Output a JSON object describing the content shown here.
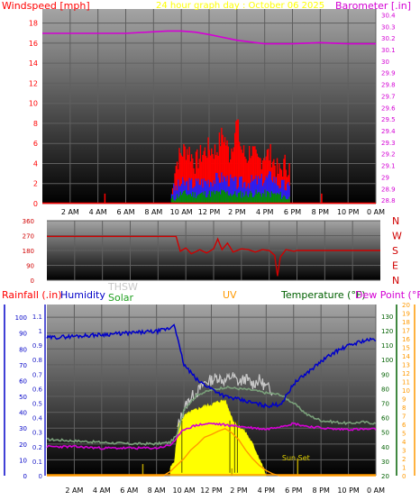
{
  "colors": {
    "background": "#ffffff",
    "plot_top": "#a0a0a0",
    "plot_bottom": "#000000",
    "grid": "#5f5f5f",
    "wind_speed": "#ff0000",
    "wind_avg": "#2020ff",
    "wind_low": "#009000",
    "barometer": "#d400d4",
    "direction": "#d00000",
    "humidity": "#0000c8",
    "solar": "#ffff00",
    "uv": "#ff9900",
    "thsw": "#c8c8c8",
    "temperature": "#207020",
    "dew_point": "#ff8c00",
    "rain": "#2020c8"
  },
  "chart_data": [
    {
      "type": "bar",
      "title": "24 hour graph day : October 06 2025",
      "left_axis_label": "Windspeed [mph]",
      "right_axis_label": "Barometer [.in]",
      "x_ticks": [
        "2 AM",
        "4 AM",
        "6 AM",
        "8 AM",
        "10 AM",
        "12 PM",
        "2 PM",
        "4 PM",
        "6 PM",
        "8 PM",
        "10 PM",
        "0 AM"
      ],
      "x_range_hours": [
        0,
        24
      ],
      "y_left_ticks": [
        "0",
        "2",
        "4",
        "6",
        "8",
        "10",
        "12",
        "14",
        "16",
        "18"
      ],
      "y_left_range": [
        0,
        19.4
      ],
      "y_right_ticks": [
        "28.8",
        "28.9",
        "29",
        "29.1",
        "29.2",
        "29.3",
        "29.4",
        "29.5",
        "29.6",
        "29.7",
        "29.8",
        "29.9",
        "30",
        "30.1",
        "30.2",
        "30.3",
        "30.4"
      ],
      "y_right_range": [
        28.77,
        30.45
      ],
      "series": [
        {
          "name": "Windspeed gust",
          "hours": [
            0,
            4.5,
            9.3,
            9.5,
            9.8,
            10.1,
            10.5,
            11,
            11.5,
            12,
            12.5,
            13,
            13.5,
            14,
            14.3,
            14.7,
            15,
            15.5,
            16,
            16.5,
            17,
            17.5,
            17.8,
            20.1
          ],
          "values": [
            0,
            1,
            0,
            3.5,
            4.5,
            5.2,
            5.5,
            4,
            5,
            5.5,
            5.2,
            7,
            4.8,
            8.2,
            5.5,
            4.5,
            5.5,
            4,
            5,
            4.8,
            3,
            4,
            3.5,
            1
          ]
        },
        {
          "name": "Windspeed average",
          "hours": [
            9.3,
            10,
            11,
            12,
            13,
            14,
            15,
            16,
            16.5,
            17,
            17.8
          ],
          "values": [
            1.2,
            2,
            2,
            2.3,
            2.6,
            2,
            2.2,
            2.4,
            2.8,
            2,
            1.5
          ]
        },
        {
          "name": "Windspeed low",
          "hours": [
            9.3,
            10,
            11,
            12,
            13,
            14,
            15,
            16,
            17,
            17.8
          ],
          "values": [
            0.4,
            1,
            0.9,
            1,
            1.1,
            0.9,
            1,
            1,
            0.9,
            0.5
          ]
        },
        {
          "name": "Barometer",
          "hours": [
            0,
            3,
            6,
            9,
            10,
            11,
            12,
            14,
            16,
            17,
            18,
            20,
            22,
            24
          ],
          "values": [
            30.24,
            30.24,
            30.24,
            30.26,
            30.26,
            30.25,
            30.23,
            30.18,
            30.15,
            30.15,
            30.15,
            30.16,
            30.15,
            30.15
          ]
        }
      ]
    },
    {
      "type": "line",
      "y_ticks": [
        "0",
        "90",
        "180",
        "270",
        "360"
      ],
      "y_range": [
        0,
        360
      ],
      "compass_labels": [
        "N",
        "W",
        "S",
        "E",
        "N"
      ],
      "series": [
        {
          "name": "Wind direction",
          "hours": [
            0,
            9.3,
            9.6,
            10,
            10.4,
            11,
            11.5,
            12,
            12.3,
            12.6,
            13,
            13.4,
            14,
            14.5,
            15,
            15.5,
            16,
            16.4,
            16.6,
            16.8,
            17.2,
            17.8,
            18,
            20,
            22,
            24
          ],
          "values": [
            265,
            265,
            175,
            195,
            160,
            185,
            165,
            190,
            250,
            185,
            225,
            170,
            190,
            185,
            170,
            185,
            180,
            150,
            25,
            140,
            185,
            175,
            180,
            180,
            180,
            180
          ]
        }
      ]
    },
    {
      "type": "line",
      "legend": [
        "Rainfall (.in)",
        "Humidity",
        "THSW",
        "Solar",
        "UV",
        "Temperature (°F)",
        "Dew Point (°F)"
      ],
      "x_ticks": [
        "2 AM",
        "4 AM",
        "6 AM",
        "8 AM",
        "10 AM",
        "12 PM",
        "2 PM",
        "4 PM",
        "6 PM",
        "8 PM",
        "10 PM",
        "0 AM"
      ],
      "x_range_hours": [
        0,
        24
      ],
      "rain_axis_ticks": [
        "0",
        "0.1",
        "0.2",
        "0.3",
        "0.4",
        "0.5",
        "0.6",
        "0.7",
        "0.8",
        "0.9",
        "1",
        "1.1"
      ],
      "rain_range": [
        0,
        1.18
      ],
      "humidity_axis_ticks": [
        "0",
        "10",
        "20",
        "30",
        "40",
        "50",
        "60",
        "70",
        "80",
        "90",
        "100"
      ],
      "humidity_range": [
        0,
        108
      ],
      "temperature_axis_ticks": [
        "20",
        "30",
        "40",
        "50",
        "60",
        "70",
        "80",
        "90",
        "100",
        "110",
        "120",
        "130"
      ],
      "temperature_range": [
        20,
        138
      ],
      "uv_axis_ticks": [
        "0",
        "1",
        "2",
        "3",
        "4",
        "5",
        "6",
        "7",
        "8",
        "9",
        "10",
        "11",
        "12",
        "13",
        "14",
        "15",
        "16",
        "17",
        "18",
        "19",
        "20"
      ],
      "uv_range": [
        0,
        20
      ],
      "annotations": [
        {
          "text": "Sun Set",
          "hour": 18.3
        }
      ],
      "series": [
        {
          "name": "Humidity",
          "hours": [
            0,
            2,
            4,
            6,
            8,
            9,
            9.3,
            9.7,
            10,
            10.5,
            11,
            12,
            13,
            14,
            15,
            16,
            17,
            17.3,
            18,
            19,
            20,
            21,
            22,
            23,
            24
          ],
          "values": [
            87,
            88,
            89,
            90,
            91,
            93,
            96,
            80,
            70,
            65,
            60,
            55,
            50,
            48,
            46,
            44,
            45,
            48,
            58,
            65,
            72,
            78,
            82,
            85,
            86
          ]
        },
        {
          "name": "Temperature",
          "hours": [
            0,
            2,
            4,
            6,
            8,
            9,
            9.5,
            10,
            11,
            12,
            13,
            14,
            15,
            16,
            17,
            18,
            19,
            20,
            21,
            22,
            23,
            24
          ],
          "values": [
            45,
            44,
            43,
            42,
            42,
            43,
            48,
            66,
            76,
            79,
            81,
            80,
            79,
            77,
            76,
            70,
            62,
            58,
            57,
            56,
            57,
            56
          ]
        },
        {
          "name": "Dew Point",
          "hours": [
            0,
            2,
            4,
            6,
            8,
            9,
            9.5,
            10,
            11,
            12,
            13,
            14,
            15,
            16,
            17,
            18,
            19,
            20,
            21,
            22,
            23,
            24
          ],
          "values": [
            40,
            40,
            39,
            39,
            39,
            41,
            46,
            52,
            55,
            56,
            55,
            54,
            53,
            52,
            54,
            56,
            54,
            53,
            52,
            52,
            52,
            52
          ]
        },
        {
          "name": "THSW",
          "hours": [
            9.5,
            10,
            10.5,
            11,
            11.5,
            12,
            12.5,
            13,
            13.5,
            14,
            14.5,
            15,
            15.5,
            16,
            16.5
          ],
          "values": [
            52,
            66,
            74,
            78,
            84,
            86,
            88,
            85,
            89,
            84,
            87,
            83,
            86,
            81,
            79
          ]
        },
        {
          "name": "Solar",
          "hours": [
            0,
            7.5,
            8.5,
            9,
            9.3,
            9.6,
            10,
            10.5,
            11,
            11.5,
            12,
            12.5,
            13,
            13.3,
            13.6,
            14,
            14.5,
            15,
            15.5,
            15.8,
            16,
            24
          ],
          "values": [
            0,
            0,
            3,
            5,
            10,
            35,
            41,
            44,
            46,
            48,
            49,
            51,
            52,
            45,
            38,
            34,
            30,
            22,
            12,
            5,
            0,
            0
          ]
        },
        {
          "name": "UV",
          "hours": [
            0,
            8.5,
            9,
            10,
            10.5,
            11,
            11.5,
            12,
            12.5,
            13,
            13.5,
            14,
            14.5,
            15,
            15.5,
            16,
            16.5,
            17,
            24
          ],
          "values": [
            0,
            0,
            0.5,
            2,
            3,
            3.7,
            4.5,
            4.8,
            5.2,
            5.5,
            5,
            4.2,
            3,
            2,
            1.2,
            0.6,
            0.2,
            0,
            0
          ]
        },
        {
          "name": "Rainfall",
          "hours": [
            7,
            13.5,
            18.3
          ],
          "values": [
            0.08,
            0.05,
            0.12
          ]
        }
      ]
    }
  ]
}
